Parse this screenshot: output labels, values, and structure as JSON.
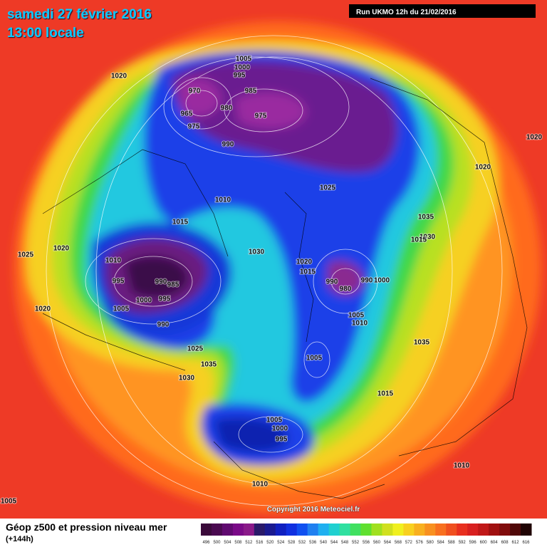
{
  "header": {
    "title": "samedi 27 février 2016",
    "time": "13:00 locale",
    "run": "Run UKMO 12h du 21/02/2016"
  },
  "map": {
    "isobar_labels": [
      "1005",
      "1000",
      "995",
      "970",
      "985",
      "965",
      "980",
      "975",
      "975",
      "990",
      "1020",
      "1020",
      "1020",
      "1025",
      "1010",
      "1015",
      "1035",
      "1030",
      "1015",
      "1025",
      "1020",
      "1010",
      "1030",
      "1020",
      "1015",
      "995",
      "990",
      "985",
      "1000",
      "995",
      "1005",
      "990",
      "980",
      "990",
      "1000",
      "1020",
      "990",
      "1005",
      "1010",
      "1035",
      "1025",
      "1035",
      "1030",
      "1005",
      "1015",
      "1005",
      "1000",
      "995",
      "1010",
      "1010",
      "1005"
    ],
    "copyright": "Copyright 2016 Meteociel.fr"
  },
  "footer": {
    "title": "Géop z500 et pression niveau mer",
    "subtitle": "(+144h)"
  },
  "colorbar": {
    "labels": [
      "496",
      "500",
      "504",
      "508",
      "512",
      "516",
      "520",
      "524",
      "528",
      "532",
      "536",
      "540",
      "544",
      "548",
      "552",
      "556",
      "560",
      "564",
      "568",
      "572",
      "576",
      "580",
      "584",
      "588",
      "592",
      "596",
      "600",
      "604",
      "608",
      "612",
      "616"
    ],
    "colors": [
      "#3a0a3a",
      "#4a0a50",
      "#600a70",
      "#7a0a88",
      "#8a1a8a",
      "#2a1a6a",
      "#1a1a90",
      "#1020c0",
      "#1030e0",
      "#1050f0",
      "#2080f0",
      "#20b0f0",
      "#20d0d0",
      "#30e0a0",
      "#40e060",
      "#60e030",
      "#a0e020",
      "#d0e020",
      "#f0f020",
      "#f8d020",
      "#f8b020",
      "#f89020",
      "#f87020",
      "#f05020",
      "#e83020",
      "#d82020",
      "#c01818",
      "#a01010",
      "#800c0c",
      "#500808",
      "#200404"
    ]
  }
}
